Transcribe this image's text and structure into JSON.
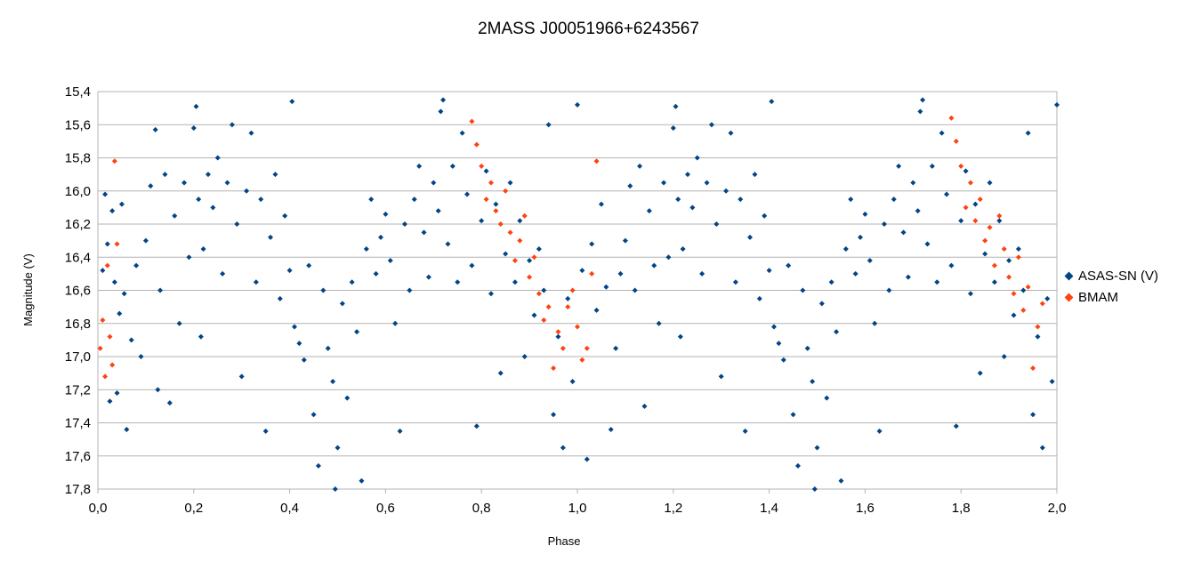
{
  "chart_data": {
    "type": "scatter",
    "title": "2MASS J00051966+6243567",
    "xlabel": "Phase",
    "ylabel": "Magnitude (V)",
    "xlim": [
      0.0,
      2.0
    ],
    "ylim": [
      17.8,
      15.4
    ],
    "y_inverted": true,
    "x_ticks": [
      "0,0",
      "0,2",
      "0,4",
      "0,6",
      "0,8",
      "1,0",
      "1,2",
      "1,4",
      "1,6",
      "1,8",
      "2,0"
    ],
    "y_ticks": [
      "15,4",
      "15,6",
      "15,8",
      "16,0",
      "16,2",
      "16,4",
      "16,6",
      "16,8",
      "17,0",
      "17,2",
      "17,4",
      "17,6",
      "17,8"
    ],
    "grid": "horizontal",
    "legend_position": "right",
    "series": [
      {
        "name": "ASAS-SN (V)",
        "color": "#004586",
        "marker": "diamond",
        "points": [
          [
            0.01,
            16.48
          ],
          [
            0.015,
            16.02
          ],
          [
            0.02,
            16.32
          ],
          [
            0.025,
            17.27
          ],
          [
            0.03,
            16.12
          ],
          [
            0.035,
            16.55
          ],
          [
            0.04,
            17.22
          ],
          [
            0.045,
            16.74
          ],
          [
            0.05,
            16.08
          ],
          [
            0.055,
            16.62
          ],
          [
            0.06,
            17.44
          ],
          [
            0.07,
            16.9
          ],
          [
            0.08,
            16.45
          ],
          [
            0.09,
            17.0
          ],
          [
            0.1,
            16.3
          ],
          [
            0.11,
            15.97
          ],
          [
            0.12,
            15.63
          ],
          [
            0.125,
            17.2
          ],
          [
            0.13,
            16.6
          ],
          [
            0.14,
            15.9
          ],
          [
            0.15,
            17.28
          ],
          [
            0.16,
            16.15
          ],
          [
            0.17,
            16.8
          ],
          [
            0.18,
            15.95
          ],
          [
            0.19,
            16.4
          ],
          [
            0.2,
            15.62
          ],
          [
            0.205,
            15.49
          ],
          [
            0.21,
            16.05
          ],
          [
            0.215,
            16.88
          ],
          [
            0.22,
            16.35
          ],
          [
            0.23,
            15.9
          ],
          [
            0.24,
            16.1
          ],
          [
            0.25,
            15.8
          ],
          [
            0.26,
            16.5
          ],
          [
            0.27,
            15.95
          ],
          [
            0.28,
            15.6
          ],
          [
            0.29,
            16.2
          ],
          [
            0.3,
            17.12
          ],
          [
            0.31,
            16.0
          ],
          [
            0.32,
            15.65
          ],
          [
            0.33,
            16.55
          ],
          [
            0.34,
            16.05
          ],
          [
            0.35,
            17.45
          ],
          [
            0.36,
            16.28
          ],
          [
            0.37,
            15.9
          ],
          [
            0.38,
            16.65
          ],
          [
            0.39,
            16.15
          ],
          [
            0.4,
            16.48
          ],
          [
            0.405,
            15.46
          ],
          [
            0.41,
            16.82
          ],
          [
            0.42,
            16.92
          ],
          [
            0.43,
            17.02
          ],
          [
            0.44,
            16.45
          ],
          [
            0.45,
            17.35
          ],
          [
            0.46,
            17.66
          ],
          [
            0.47,
            16.6
          ],
          [
            0.48,
            16.95
          ],
          [
            0.49,
            17.15
          ],
          [
            0.495,
            17.8
          ],
          [
            0.5,
            17.55
          ],
          [
            0.51,
            16.68
          ],
          [
            0.52,
            17.25
          ],
          [
            0.53,
            16.55
          ],
          [
            0.54,
            16.85
          ],
          [
            0.55,
            17.75
          ],
          [
            0.56,
            16.35
          ],
          [
            0.57,
            16.05
          ],
          [
            0.58,
            16.5
          ],
          [
            0.59,
            16.28
          ],
          [
            0.6,
            16.14
          ],
          [
            0.61,
            16.42
          ],
          [
            0.62,
            16.8
          ],
          [
            0.63,
            17.45
          ],
          [
            0.64,
            16.2
          ],
          [
            0.65,
            16.6
          ],
          [
            0.66,
            16.05
          ],
          [
            0.67,
            15.85
          ],
          [
            0.68,
            16.25
          ],
          [
            0.69,
            16.52
          ],
          [
            0.7,
            15.95
          ],
          [
            0.71,
            16.12
          ],
          [
            0.715,
            15.52
          ],
          [
            0.72,
            15.45
          ],
          [
            0.73,
            16.32
          ],
          [
            0.74,
            15.85
          ],
          [
            0.75,
            16.55
          ],
          [
            0.76,
            15.65
          ],
          [
            0.77,
            16.02
          ],
          [
            0.78,
            16.45
          ],
          [
            0.79,
            17.42
          ],
          [
            0.8,
            16.18
          ],
          [
            0.81,
            15.88
          ],
          [
            0.82,
            16.62
          ],
          [
            0.83,
            16.08
          ],
          [
            0.84,
            17.1
          ],
          [
            0.85,
            16.38
          ],
          [
            0.86,
            15.95
          ],
          [
            0.87,
            16.55
          ],
          [
            0.88,
            16.18
          ],
          [
            0.89,
            17.0
          ],
          [
            0.9,
            16.42
          ],
          [
            0.91,
            16.75
          ],
          [
            0.92,
            16.35
          ],
          [
            0.93,
            16.6
          ],
          [
            0.94,
            15.6
          ],
          [
            0.95,
            17.35
          ],
          [
            0.96,
            16.88
          ],
          [
            0.97,
            17.55
          ],
          [
            0.98,
            16.65
          ],
          [
            0.99,
            17.15
          ],
          [
            1.0,
            15.48
          ],
          [
            1.01,
            16.48
          ],
          [
            1.02,
            17.62
          ],
          [
            1.03,
            16.32
          ],
          [
            1.04,
            16.72
          ],
          [
            1.05,
            16.08
          ],
          [
            1.06,
            16.58
          ],
          [
            1.07,
            17.44
          ],
          [
            1.08,
            16.95
          ],
          [
            1.09,
            16.5
          ],
          [
            1.1,
            16.3
          ],
          [
            1.11,
            15.97
          ],
          [
            1.12,
            16.6
          ],
          [
            1.13,
            15.85
          ],
          [
            1.14,
            17.3
          ],
          [
            1.15,
            16.12
          ],
          [
            1.16,
            16.45
          ],
          [
            1.17,
            16.8
          ],
          [
            1.18,
            15.95
          ],
          [
            1.19,
            16.4
          ],
          [
            1.2,
            15.62
          ],
          [
            1.205,
            15.49
          ],
          [
            1.21,
            16.05
          ],
          [
            1.215,
            16.88
          ],
          [
            1.22,
            16.35
          ],
          [
            1.23,
            15.9
          ],
          [
            1.24,
            16.1
          ],
          [
            1.25,
            15.8
          ],
          [
            1.26,
            16.5
          ],
          [
            1.27,
            15.95
          ],
          [
            1.28,
            15.6
          ],
          [
            1.29,
            16.2
          ],
          [
            1.3,
            17.12
          ],
          [
            1.31,
            16.0
          ],
          [
            1.32,
            15.65
          ],
          [
            1.33,
            16.55
          ],
          [
            1.34,
            16.05
          ],
          [
            1.35,
            17.45
          ],
          [
            1.36,
            16.28
          ],
          [
            1.37,
            15.9
          ],
          [
            1.38,
            16.65
          ],
          [
            1.39,
            16.15
          ],
          [
            1.4,
            16.48
          ],
          [
            1.405,
            15.46
          ],
          [
            1.41,
            16.82
          ],
          [
            1.42,
            16.92
          ],
          [
            1.43,
            17.02
          ],
          [
            1.44,
            16.45
          ],
          [
            1.45,
            17.35
          ],
          [
            1.46,
            17.66
          ],
          [
            1.47,
            16.6
          ],
          [
            1.48,
            16.95
          ],
          [
            1.49,
            17.15
          ],
          [
            1.495,
            17.8
          ],
          [
            1.5,
            17.55
          ],
          [
            1.51,
            16.68
          ],
          [
            1.52,
            17.25
          ],
          [
            1.53,
            16.55
          ],
          [
            1.54,
            16.85
          ],
          [
            1.55,
            17.75
          ],
          [
            1.56,
            16.35
          ],
          [
            1.57,
            16.05
          ],
          [
            1.58,
            16.5
          ],
          [
            1.59,
            16.28
          ],
          [
            1.6,
            16.14
          ],
          [
            1.61,
            16.42
          ],
          [
            1.62,
            16.8
          ],
          [
            1.63,
            17.45
          ],
          [
            1.64,
            16.2
          ],
          [
            1.65,
            16.6
          ],
          [
            1.66,
            16.05
          ],
          [
            1.67,
            15.85
          ],
          [
            1.68,
            16.25
          ],
          [
            1.69,
            16.52
          ],
          [
            1.7,
            15.95
          ],
          [
            1.71,
            16.12
          ],
          [
            1.715,
            15.52
          ],
          [
            1.72,
            15.45
          ],
          [
            1.73,
            16.32
          ],
          [
            1.74,
            15.85
          ],
          [
            1.75,
            16.55
          ],
          [
            1.76,
            15.65
          ],
          [
            1.77,
            16.02
          ],
          [
            1.78,
            16.45
          ],
          [
            1.79,
            17.42
          ],
          [
            1.8,
            16.18
          ],
          [
            1.81,
            15.88
          ],
          [
            1.82,
            16.62
          ],
          [
            1.83,
            16.08
          ],
          [
            1.84,
            17.1
          ],
          [
            1.85,
            16.38
          ],
          [
            1.86,
            15.95
          ],
          [
            1.87,
            16.55
          ],
          [
            1.88,
            16.18
          ],
          [
            1.89,
            17.0
          ],
          [
            1.9,
            16.42
          ],
          [
            1.91,
            16.75
          ],
          [
            1.92,
            16.35
          ],
          [
            1.93,
            16.6
          ],
          [
            1.94,
            15.65
          ],
          [
            1.95,
            17.35
          ],
          [
            1.96,
            16.88
          ],
          [
            1.97,
            17.55
          ],
          [
            1.98,
            16.65
          ],
          [
            1.99,
            17.15
          ],
          [
            2.0,
            15.48
          ]
        ]
      },
      {
        "name": "BMAM",
        "color": "#ff420e",
        "marker": "diamond",
        "points": [
          [
            0.005,
            16.95
          ],
          [
            0.01,
            16.78
          ],
          [
            0.015,
            17.12
          ],
          [
            0.02,
            16.45
          ],
          [
            0.025,
            16.88
          ],
          [
            0.03,
            17.05
          ],
          [
            0.035,
            15.82
          ],
          [
            0.04,
            16.32
          ],
          [
            0.78,
            15.58
          ],
          [
            0.79,
            15.72
          ],
          [
            0.8,
            15.85
          ],
          [
            0.81,
            16.05
          ],
          [
            0.82,
            15.95
          ],
          [
            0.83,
            16.12
          ],
          [
            0.84,
            16.2
          ],
          [
            0.85,
            16.0
          ],
          [
            0.86,
            16.25
          ],
          [
            0.87,
            16.42
          ],
          [
            0.88,
            16.3
          ],
          [
            0.89,
            16.15
          ],
          [
            0.9,
            16.52
          ],
          [
            0.91,
            16.4
          ],
          [
            0.92,
            16.62
          ],
          [
            0.93,
            16.78
          ],
          [
            0.94,
            16.7
          ],
          [
            0.95,
            17.07
          ],
          [
            0.96,
            16.85
          ],
          [
            0.97,
            16.95
          ],
          [
            0.98,
            16.7
          ],
          [
            0.99,
            16.6
          ],
          [
            1.0,
            16.82
          ],
          [
            1.01,
            17.02
          ],
          [
            1.02,
            16.95
          ],
          [
            1.03,
            16.5
          ],
          [
            1.04,
            15.82
          ],
          [
            1.78,
            15.56
          ],
          [
            1.79,
            15.7
          ],
          [
            1.8,
            15.85
          ],
          [
            1.81,
            16.1
          ],
          [
            1.82,
            15.95
          ],
          [
            1.83,
            16.18
          ],
          [
            1.84,
            16.05
          ],
          [
            1.85,
            16.3
          ],
          [
            1.86,
            16.22
          ],
          [
            1.87,
            16.45
          ],
          [
            1.88,
            16.15
          ],
          [
            1.89,
            16.35
          ],
          [
            1.9,
            16.52
          ],
          [
            1.91,
            16.62
          ],
          [
            1.92,
            16.4
          ],
          [
            1.93,
            16.72
          ],
          [
            1.94,
            16.58
          ],
          [
            1.95,
            17.07
          ],
          [
            1.96,
            16.82
          ],
          [
            1.97,
            16.68
          ]
        ]
      }
    ]
  }
}
